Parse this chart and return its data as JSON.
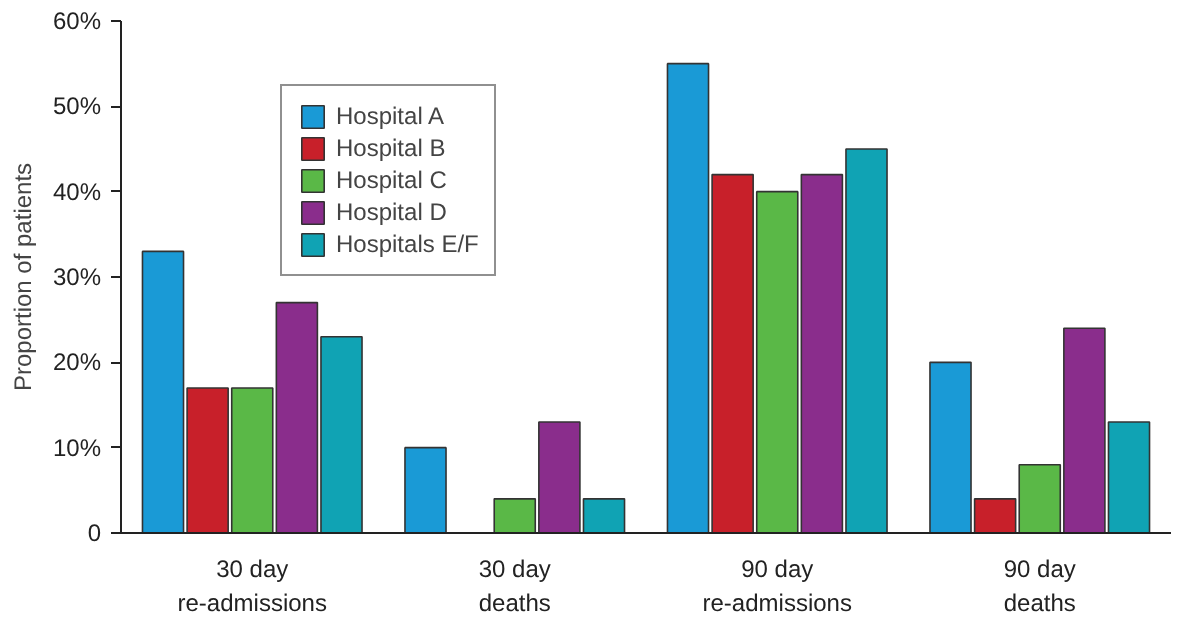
{
  "chart_data": {
    "type": "bar",
    "ylabel": "Proportion of patients",
    "categories": [
      "30 day\nre-admissions",
      "30 day\ndeaths",
      "90 day\nre-admissions",
      "90 day\ndeaths"
    ],
    "series": [
      {
        "name": "Hospital A",
        "color": "#1a9ad6",
        "values": [
          33,
          10,
          55,
          20
        ]
      },
      {
        "name": "Hospital B",
        "color": "#c8202a",
        "values": [
          17,
          0,
          42,
          4
        ]
      },
      {
        "name": "Hospital C",
        "color": "#5ab847",
        "values": [
          17,
          4,
          40,
          8
        ]
      },
      {
        "name": "Hospital D",
        "color": "#8a2d8c",
        "values": [
          27,
          13,
          42,
          24
        ]
      },
      {
        "name": "Hospitals E/F",
        "color": "#10a3b4",
        "values": [
          23,
          4,
          45,
          13
        ]
      }
    ],
    "ylim": [
      0,
      60
    ],
    "yticks": [
      {
        "value": 0,
        "label": "0"
      },
      {
        "value": 10,
        "label": "10%"
      },
      {
        "value": 20,
        "label": "20%"
      },
      {
        "value": 30,
        "label": "30%"
      },
      {
        "value": 40,
        "label": "40%"
      },
      {
        "value": 50,
        "label": "50%"
      },
      {
        "value": 60,
        "label": "60%"
      }
    ],
    "grid": false,
    "legend": "top left"
  }
}
